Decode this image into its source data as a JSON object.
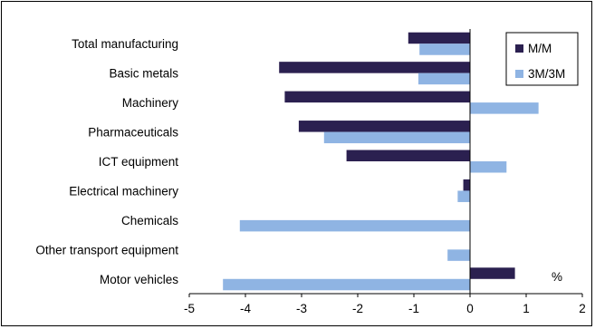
{
  "chart_data": {
    "type": "bar",
    "orientation": "horizontal",
    "categories": [
      "Total manufacturing",
      "Basic metals",
      "Machinery",
      "Pharmaceuticals",
      "ICT equipment",
      "Electrical machinery",
      "Chemicals",
      "Other transport equipment",
      "Motor vehicles"
    ],
    "series": [
      {
        "name": "M/M",
        "color": "#2b2050",
        "values": [
          -1.1,
          -3.4,
          -3.3,
          -3.05,
          -2.2,
          -0.12,
          0,
          0,
          0.8
        ]
      },
      {
        "name": "3M/3M",
        "color": "#8fb4e3",
        "values": [
          -0.9,
          -0.92,
          1.22,
          -2.6,
          0.65,
          -0.22,
          -4.1,
          -0.4,
          -4.4
        ]
      }
    ],
    "xlim": [
      -5,
      2
    ],
    "xticks": [
      "-5",
      "-4",
      "-3",
      "-2",
      "-1",
      "0",
      "1",
      "2"
    ],
    "unit_label": "%",
    "grid": false,
    "legend_position": "top-right"
  }
}
